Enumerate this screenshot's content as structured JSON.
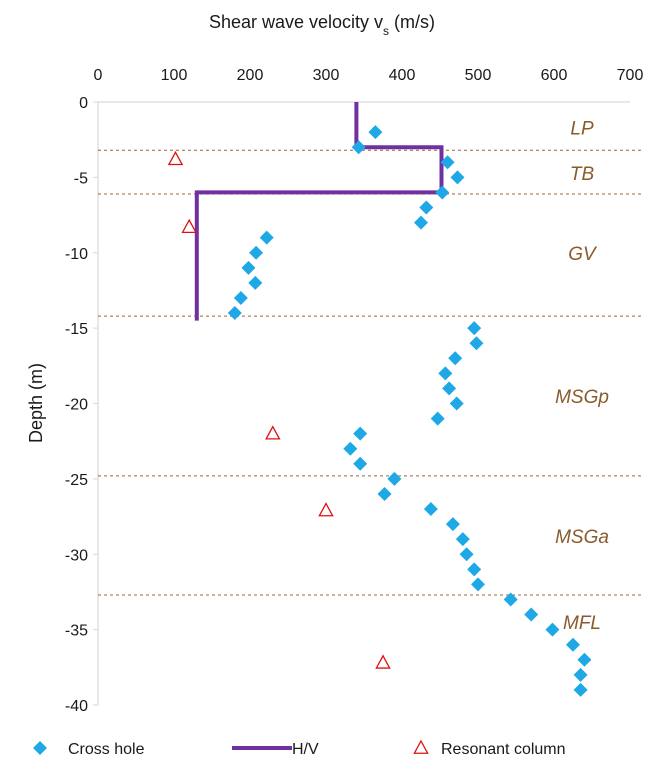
{
  "chart_data": {
    "type": "scatter",
    "title": "",
    "xlabel": "Shear wave velocity v",
    "xlabel_sub": "s",
    "xlabel_unit": " (m/s)",
    "ylabel": "Depth (m)",
    "x_axis_position": "top",
    "xlim": [
      0,
      700
    ],
    "ylim": [
      -40,
      0
    ],
    "x_ticks": [
      0,
      100,
      200,
      300,
      400,
      500,
      600,
      700
    ],
    "y_ticks": [
      0,
      -5,
      -10,
      -15,
      -20,
      -25,
      -30,
      -35,
      -40
    ],
    "grid": false,
    "legend_position": "bottom",
    "colors": {
      "cross_hole": "#1fa8e6",
      "hv": "#7030a0",
      "resonant": "#e01010",
      "layer_line": "#a0642d",
      "layer_text": "#8a5a2b"
    },
    "series": [
      {
        "name": "Cross hole",
        "marker": "diamond",
        "points": [
          {
            "x": 365,
            "y": -2
          },
          {
            "x": 343,
            "y": -3
          },
          {
            "x": 460,
            "y": -4
          },
          {
            "x": 473,
            "y": -5
          },
          {
            "x": 453,
            "y": -6
          },
          {
            "x": 432,
            "y": -7
          },
          {
            "x": 425,
            "y": -8
          },
          {
            "x": 222,
            "y": -9
          },
          {
            "x": 208,
            "y": -10
          },
          {
            "x": 198,
            "y": -11
          },
          {
            "x": 207,
            "y": -12
          },
          {
            "x": 188,
            "y": -13
          },
          {
            "x": 180,
            "y": -14
          },
          {
            "x": 495,
            "y": -15
          },
          {
            "x": 498,
            "y": -16
          },
          {
            "x": 470,
            "y": -17
          },
          {
            "x": 457,
            "y": -18
          },
          {
            "x": 462,
            "y": -19
          },
          {
            "x": 472,
            "y": -20
          },
          {
            "x": 447,
            "y": -21
          },
          {
            "x": 345,
            "y": -22
          },
          {
            "x": 332,
            "y": -23
          },
          {
            "x": 345,
            "y": -24
          },
          {
            "x": 390,
            "y": -25
          },
          {
            "x": 377,
            "y": -26
          },
          {
            "x": 438,
            "y": -27
          },
          {
            "x": 467,
            "y": -28
          },
          {
            "x": 480,
            "y": -29
          },
          {
            "x": 485,
            "y": -30
          },
          {
            "x": 495,
            "y": -31
          },
          {
            "x": 500,
            "y": -32
          },
          {
            "x": 543,
            "y": -33
          },
          {
            "x": 570,
            "y": -34
          },
          {
            "x": 598,
            "y": -35
          },
          {
            "x": 625,
            "y": -36
          },
          {
            "x": 640,
            "y": -37
          },
          {
            "x": 635,
            "y": -38
          },
          {
            "x": 635,
            "y": -39
          }
        ]
      },
      {
        "name": "H/V",
        "marker": "step-line",
        "points": [
          {
            "x": 340,
            "y": 0
          },
          {
            "x": 340,
            "y": -3
          },
          {
            "x": 452,
            "y": -3
          },
          {
            "x": 452,
            "y": -6
          },
          {
            "x": 130,
            "y": -6
          },
          {
            "x": 130,
            "y": -14.5
          }
        ]
      },
      {
        "name": "Resonant column",
        "marker": "triangle",
        "points": [
          {
            "x": 102,
            "y": -3.8
          },
          {
            "x": 120,
            "y": -8.3
          },
          {
            "x": 230,
            "y": -22
          },
          {
            "x": 300,
            "y": -27.1
          },
          {
            "x": 375,
            "y": -37.2
          }
        ]
      }
    ],
    "layers": [
      {
        "name": "LP",
        "top": 0,
        "bottom": -3.2,
        "label_y": -1.7
      },
      {
        "name": "TB",
        "top": -3.2,
        "bottom": -6.1,
        "label_y": -4.7
      },
      {
        "name": "GV",
        "top": -6.1,
        "bottom": -14.2,
        "label_y": -10
      },
      {
        "name": "MSGp",
        "top": -14.2,
        "bottom": -24.8,
        "label_y": -19.5
      },
      {
        "name": "MSGa",
        "top": -24.8,
        "bottom": -32.7,
        "label_y": -28.8
      },
      {
        "name": "MFL",
        "top": -32.7,
        "bottom": -40,
        "label_y": -34.5
      }
    ],
    "layer_boundaries": [
      -3.2,
      -6.1,
      -14.2,
      -24.8,
      -32.7
    ]
  }
}
